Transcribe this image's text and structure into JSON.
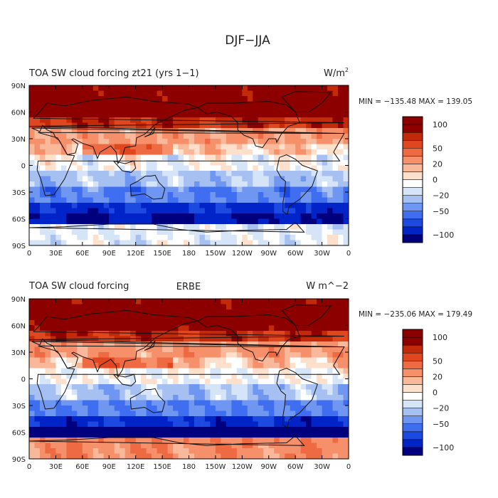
{
  "figure_title": "DJF−JJA",
  "colors": {
    "scale": [
      "#00007f",
      "#0024c8",
      "#1c49e0",
      "#3f6ff0",
      "#6f97f2",
      "#a7c0f2",
      "#d6e4f8",
      "#ffffff",
      "#fde0cc",
      "#f9b89a",
      "#f5906b",
      "#ee6a43",
      "#e0471f",
      "#c32a0a",
      "#8c0000"
    ]
  },
  "chart_data": [
    {
      "type": "heatmap",
      "title": "TOA SW cloud forcing zt21 (yrs 1−1)",
      "center_title": "",
      "units": "W/m",
      "units_sup": "2",
      "stats": "MIN = −135.48 MAX = 139.05",
      "min": -135.48,
      "max": 139.05,
      "x_ticks": [
        "0",
        "30E",
        "60E",
        "90E",
        "120E",
        "150E",
        "180",
        "150W",
        "120W",
        "90W",
        "60W",
        "30W",
        "0"
      ],
      "y_ticks": [
        "90N",
        "60N",
        "30N",
        "0",
        "30S",
        "60S",
        "90S"
      ],
      "colorbar_levels": [
        -120,
        -100,
        -80,
        -65,
        -50,
        -35,
        -20,
        -10,
        0,
        10,
        20,
        35,
        50,
        65,
        80,
        100,
        120
      ],
      "colorbar_labels": [
        "100",
        "50",
        "20",
        "0",
        "−20",
        "−50",
        "−100"
      ],
      "colorbar_label_values": [
        100,
        50,
        20,
        0,
        -20,
        -50,
        -100
      ]
    },
    {
      "type": "heatmap",
      "title": "TOA SW cloud forcing",
      "center_title": "ERBE",
      "units": "W m^−2",
      "units_sup": "",
      "stats": "MIN = −235.06 MAX = 179.49",
      "min": -235.06,
      "max": 179.49,
      "x_ticks": [
        "0",
        "30E",
        "60E",
        "90E",
        "120E",
        "150E",
        "180",
        "150W",
        "120W",
        "90W",
        "60W",
        "30W",
        "0"
      ],
      "y_ticks": [
        "90N",
        "60N",
        "30N",
        "0",
        "30S",
        "60S",
        "90S"
      ],
      "colorbar_levels": [
        -120,
        -100,
        -80,
        -65,
        -50,
        -35,
        -20,
        -10,
        0,
        10,
        20,
        35,
        50,
        65,
        80,
        100,
        120
      ],
      "colorbar_labels": [
        "100",
        "50",
        "20",
        "0",
        "−20",
        "−50",
        "−100"
      ],
      "colorbar_label_values": [
        100,
        50,
        20,
        0,
        -20,
        -50,
        -100
      ]
    }
  ]
}
